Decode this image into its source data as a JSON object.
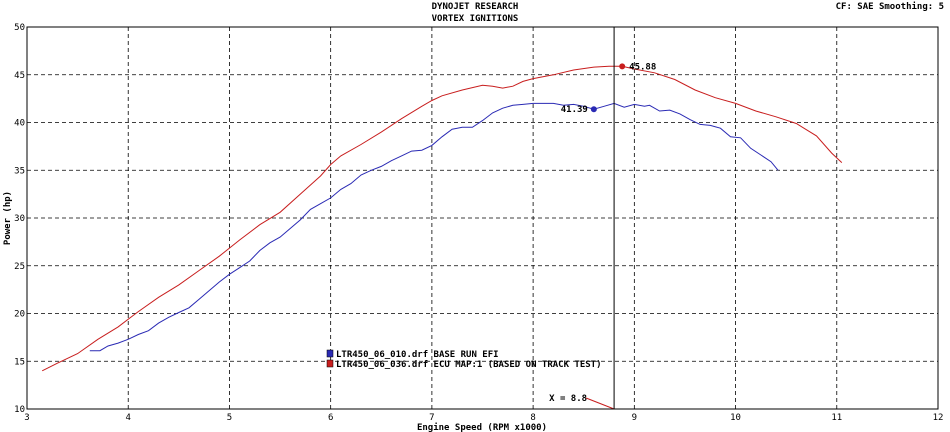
{
  "header": {
    "title_line1": "DYNOJET RESEARCH",
    "title_line2": "VORTEX IGNITIONS",
    "cf_info": "CF: SAE  Smoothing: 5"
  },
  "chart_data": {
    "type": "line",
    "xlabel": "Engine Speed (RPM x1000)",
    "ylabel": "Power (hp)",
    "xlim": [
      3,
      12
    ],
    "ylim": [
      10,
      50
    ],
    "xticks": [
      3,
      4,
      5,
      6,
      7,
      8,
      9,
      10,
      11,
      12
    ],
    "yticks": [
      10,
      15,
      20,
      25,
      30,
      35,
      40,
      45,
      50
    ],
    "grid": true,
    "series": [
      {
        "name": "LTR450_06_010.drf BASE RUN EFI",
        "color": "#2a2ab4",
        "points": [
          [
            3.62,
            16.1
          ],
          [
            3.72,
            16.1
          ],
          [
            3.8,
            16.6
          ],
          [
            3.9,
            16.9
          ],
          [
            4.0,
            17.3
          ],
          [
            4.1,
            17.8
          ],
          [
            4.2,
            18.2
          ],
          [
            4.3,
            19.0
          ],
          [
            4.4,
            19.6
          ],
          [
            4.5,
            20.1
          ],
          [
            4.6,
            20.6
          ],
          [
            4.7,
            21.5
          ],
          [
            4.8,
            22.4
          ],
          [
            4.9,
            23.3
          ],
          [
            5.0,
            24.1
          ],
          [
            5.1,
            24.8
          ],
          [
            5.2,
            25.5
          ],
          [
            5.3,
            26.6
          ],
          [
            5.4,
            27.4
          ],
          [
            5.5,
            28.0
          ],
          [
            5.6,
            28.9
          ],
          [
            5.7,
            29.8
          ],
          [
            5.8,
            30.9
          ],
          [
            5.9,
            31.5
          ],
          [
            6.0,
            32.1
          ],
          [
            6.1,
            33.0
          ],
          [
            6.2,
            33.6
          ],
          [
            6.3,
            34.5
          ],
          [
            6.4,
            35.0
          ],
          [
            6.5,
            35.4
          ],
          [
            6.6,
            36.0
          ],
          [
            6.7,
            36.5
          ],
          [
            6.8,
            37.0
          ],
          [
            6.9,
            37.1
          ],
          [
            7.0,
            37.6
          ],
          [
            7.1,
            38.5
          ],
          [
            7.2,
            39.3
          ],
          [
            7.3,
            39.5
          ],
          [
            7.4,
            39.5
          ],
          [
            7.5,
            40.2
          ],
          [
            7.6,
            41.0
          ],
          [
            7.7,
            41.5
          ],
          [
            7.8,
            41.8
          ],
          [
            7.9,
            41.9
          ],
          [
            8.0,
            42.0
          ],
          [
            8.1,
            42.0
          ],
          [
            8.2,
            42.0
          ],
          [
            8.3,
            41.8
          ],
          [
            8.4,
            41.9
          ],
          [
            8.5,
            41.7
          ],
          [
            8.6,
            41.39
          ],
          [
            8.7,
            41.7
          ],
          [
            8.8,
            42.0
          ],
          [
            8.9,
            41.6
          ],
          [
            9.0,
            41.9
          ],
          [
            9.1,
            41.7
          ],
          [
            9.15,
            41.8
          ],
          [
            9.25,
            41.2
          ],
          [
            9.35,
            41.3
          ],
          [
            9.45,
            40.9
          ],
          [
            9.55,
            40.3
          ],
          [
            9.65,
            39.8
          ],
          [
            9.75,
            39.7
          ],
          [
            9.85,
            39.4
          ],
          [
            9.95,
            38.5
          ],
          [
            10.05,
            38.4
          ],
          [
            10.15,
            37.3
          ],
          [
            10.25,
            36.6
          ],
          [
            10.35,
            35.9
          ],
          [
            10.42,
            35.0
          ]
        ]
      },
      {
        "name": "LTR450_06_036.drf ECU MAP:1 (BASED ON TRACK TEST)",
        "color": "#c81e1e",
        "points": [
          [
            3.15,
            14.0
          ],
          [
            3.3,
            14.8
          ],
          [
            3.5,
            15.8
          ],
          [
            3.7,
            17.3
          ],
          [
            3.9,
            18.6
          ],
          [
            4.1,
            20.2
          ],
          [
            4.3,
            21.7
          ],
          [
            4.5,
            23.0
          ],
          [
            4.7,
            24.5
          ],
          [
            4.9,
            26.0
          ],
          [
            5.1,
            27.7
          ],
          [
            5.3,
            29.3
          ],
          [
            5.5,
            30.6
          ],
          [
            5.7,
            32.5
          ],
          [
            5.9,
            34.4
          ],
          [
            6.0,
            35.6
          ],
          [
            6.1,
            36.5
          ],
          [
            6.3,
            37.7
          ],
          [
            6.5,
            39.0
          ],
          [
            6.7,
            40.4
          ],
          [
            6.9,
            41.7
          ],
          [
            7.0,
            42.3
          ],
          [
            7.1,
            42.8
          ],
          [
            7.3,
            43.4
          ],
          [
            7.5,
            43.9
          ],
          [
            7.6,
            43.8
          ],
          [
            7.7,
            43.6
          ],
          [
            7.8,
            43.8
          ],
          [
            7.9,
            44.3
          ],
          [
            8.0,
            44.6
          ],
          [
            8.2,
            45.0
          ],
          [
            8.4,
            45.5
          ],
          [
            8.6,
            45.8
          ],
          [
            8.75,
            45.9
          ],
          [
            8.88,
            45.88
          ],
          [
            9.0,
            45.6
          ],
          [
            9.2,
            45.2
          ],
          [
            9.4,
            44.5
          ],
          [
            9.6,
            43.4
          ],
          [
            9.8,
            42.6
          ],
          [
            10.0,
            42.0
          ],
          [
            10.2,
            41.2
          ],
          [
            10.4,
            40.6
          ],
          [
            10.6,
            39.9
          ],
          [
            10.8,
            38.6
          ],
          [
            10.95,
            36.8
          ],
          [
            11.05,
            35.8
          ]
        ]
      }
    ],
    "peaks": [
      {
        "label": "45.88",
        "x": 8.88,
        "y": 45.88,
        "series": 1
      },
      {
        "label": "41.39",
        "x": 8.6,
        "y": 41.39,
        "series": 0
      }
    ],
    "cursor": {
      "x": 8.8,
      "label": "X = 8.8"
    },
    "legend": {
      "position": "lower-center"
    }
  }
}
